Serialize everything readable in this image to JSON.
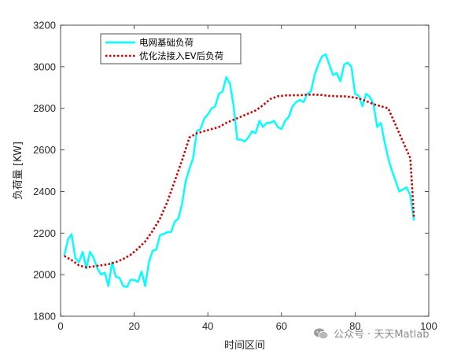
{
  "chart_data": {
    "type": "line",
    "title": "",
    "xlabel": "时间区间",
    "ylabel": "负荷量 [KW]",
    "xlim": [
      0,
      100
    ],
    "ylim": [
      1800,
      3200
    ],
    "xticks": [
      0,
      20,
      40,
      60,
      80,
      100
    ],
    "yticks": [
      1800,
      2000,
      2200,
      2400,
      2600,
      2800,
      3000,
      3200
    ],
    "grid": false,
    "legend_position": "top-left",
    "series": [
      {
        "name": "电网基础负荷",
        "color": "#00FFFF",
        "style": "solid",
        "x": [
          1,
          2,
          3,
          4,
          5,
          6,
          7,
          8,
          9,
          10,
          11,
          12,
          13,
          14,
          15,
          16,
          17,
          18,
          19,
          20,
          21,
          22,
          23,
          24,
          25,
          26,
          27,
          28,
          29,
          30,
          31,
          32,
          33,
          34,
          35,
          36,
          37,
          38,
          39,
          40,
          41,
          42,
          43,
          44,
          45,
          46,
          47,
          48,
          49,
          50,
          51,
          52,
          53,
          54,
          55,
          56,
          57,
          58,
          59,
          60,
          61,
          62,
          63,
          64,
          65,
          66,
          67,
          68,
          69,
          70,
          71,
          72,
          73,
          74,
          75,
          76,
          77,
          78,
          79,
          80,
          81,
          82,
          83,
          84,
          85,
          86,
          87,
          88,
          89,
          90,
          91,
          92,
          93,
          94,
          95,
          96
        ],
        "y": [
          2090,
          2170,
          2195,
          2080,
          2060,
          2110,
          2030,
          2110,
          2080,
          2030,
          2000,
          2010,
          1945,
          2060,
          1990,
          1985,
          1945,
          1940,
          1975,
          1975,
          1965,
          2015,
          1945,
          2060,
          2115,
          2120,
          2190,
          2195,
          2205,
          2205,
          2255,
          2270,
          2340,
          2450,
          2510,
          2560,
          2690,
          2700,
          2750,
          2770,
          2800,
          2810,
          2870,
          2880,
          2950,
          2920,
          2810,
          2650,
          2650,
          2640,
          2660,
          2690,
          2680,
          2740,
          2710,
          2730,
          2730,
          2740,
          2710,
          2700,
          2740,
          2760,
          2810,
          2830,
          2840,
          2830,
          2870,
          2880,
          2960,
          3010,
          3050,
          3060,
          3010,
          2960,
          2970,
          2930,
          3010,
          3020,
          3000,
          2870,
          2860,
          2810,
          2870,
          2855,
          2820,
          2710,
          2730,
          2640,
          2560,
          2500,
          2450,
          2400,
          2410,
          2420,
          2380,
          2260
        ]
      },
      {
        "name": "优化法接入EV后负荷",
        "color": "#CC0000",
        "style": "dotted",
        "x": [
          1,
          3,
          5,
          7,
          9,
          11,
          13,
          15,
          17,
          19,
          21,
          23,
          25,
          27,
          29,
          31,
          33,
          35,
          37,
          39,
          41,
          43,
          45,
          47,
          49,
          51,
          53,
          55,
          57,
          59,
          61,
          63,
          65,
          67,
          69,
          71,
          73,
          75,
          77,
          79,
          81,
          83,
          85,
          87,
          89,
          91,
          93,
          95,
          96
        ],
        "y": [
          2090,
          2070,
          2045,
          2035,
          2040,
          2045,
          2050,
          2060,
          2075,
          2095,
          2125,
          2160,
          2210,
          2270,
          2350,
          2450,
          2550,
          2660,
          2680,
          2690,
          2700,
          2710,
          2730,
          2745,
          2760,
          2775,
          2790,
          2815,
          2845,
          2858,
          2862,
          2863,
          2863,
          2866,
          2866,
          2864,
          2860,
          2858,
          2858,
          2854,
          2848,
          2835,
          2820,
          2810,
          2800,
          2720,
          2640,
          2560,
          2270
        ]
      }
    ]
  },
  "watermark": {
    "text": "公众号 · 天天Matlab",
    "icon": "wechat-icon"
  }
}
